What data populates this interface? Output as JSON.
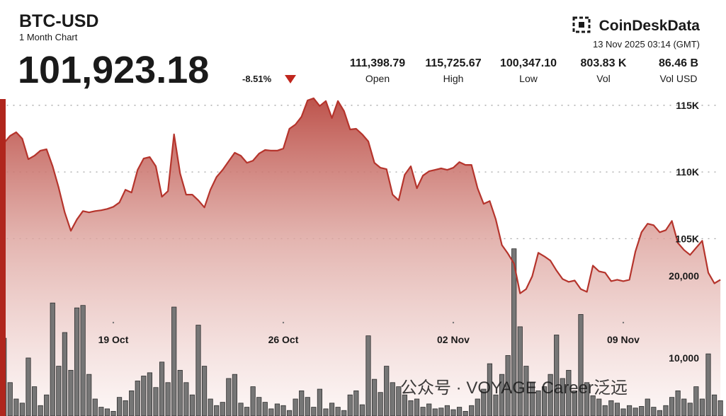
{
  "chart_data": {
    "type": "line",
    "title": "BTC-USD",
    "subtitle": "1 Month Chart",
    "price": "101,923.18",
    "change": "-8.51%",
    "brand": "CoinDeskData",
    "timestamp": "13 Nov 2025 03:14 (GMT)",
    "watermark": "公众号 · VOYAGE Career泛远",
    "stats": [
      {
        "value": "111,398.79",
        "label": "Open"
      },
      {
        "value": "115,725.67",
        "label": "High"
      },
      {
        "value": "100,347.10",
        "label": "Low"
      },
      {
        "value": "803.83 K",
        "label": "Vol"
      },
      {
        "value": "86.46 B",
        "label": "Vol USD"
      }
    ],
    "categories": [
      null,
      null,
      null,
      null,
      null,
      null,
      null,
      null,
      null,
      null,
      null,
      null,
      null,
      null,
      null,
      null,
      null,
      null,
      "19 Oct",
      null,
      null,
      null,
      null,
      null,
      null,
      null,
      null,
      null,
      null,
      null,
      null,
      null,
      null,
      null,
      null,
      null,
      null,
      null,
      null,
      null,
      null,
      null,
      null,
      null,
      null,
      null,
      "26 Oct",
      null,
      null,
      null,
      null,
      null,
      null,
      null,
      null,
      null,
      null,
      null,
      null,
      null,
      null,
      null,
      null,
      null,
      null,
      null,
      null,
      null,
      null,
      null,
      null,
      null,
      null,
      null,
      "02 Nov",
      null,
      null,
      null,
      null,
      null,
      null,
      null,
      null,
      null,
      null,
      null,
      null,
      null,
      null,
      null,
      null,
      null,
      null,
      null,
      null,
      null,
      null,
      null,
      null,
      null,
      null,
      null,
      "09 Nov",
      null,
      null,
      null,
      null,
      null,
      null,
      null,
      null,
      null,
      null,
      null,
      null,
      null,
      null,
      null,
      null
    ],
    "series": [
      {
        "color": "#b5342c",
        "values": [
          112180,
          112710,
          112980,
          112500,
          110960,
          111220,
          111600,
          111700,
          110430,
          108830,
          106970,
          105590,
          106440,
          107070,
          106970,
          107070,
          107130,
          107230,
          107390,
          107710,
          108670,
          108460,
          110160,
          111010,
          111120,
          110430,
          108140,
          108560,
          112820,
          109890,
          108300,
          108300,
          107870,
          107340,
          108670,
          109620,
          110160,
          110800,
          111440,
          111220,
          110690,
          110850,
          111380,
          111650,
          111600,
          111600,
          111760,
          113240,
          113560,
          114150,
          115370,
          115530,
          114950,
          115320,
          114040,
          115320,
          114570,
          113190,
          113240,
          112820,
          112290,
          110690,
          110320,
          110210,
          108300,
          107870,
          109790,
          110430,
          108780,
          109730,
          110050,
          110160,
          110270,
          110160,
          110320,
          110740,
          110530,
          110530,
          108780,
          107610,
          107820,
          106440,
          104520,
          103880,
          103140,
          100900,
          101220,
          102180,
          103940,
          103670,
          103350,
          102610,
          101970,
          101760,
          101860,
          101220,
          101010,
          102980,
          102550,
          102450,
          101810,
          101920,
          101810,
          101920,
          104040,
          105480,
          106120,
          106010,
          105480,
          105640,
          106330,
          104680,
          104150,
          103780,
          104310,
          104840,
          102450,
          101650,
          101920
        ]
      },
      {
        "axis": "y2",
        "type": "bar",
        "color": "#767676",
        "values": [
          12400,
          7000,
          5000,
          4500,
          10000,
          6500,
          4200,
          5500,
          16700,
          9000,
          13100,
          8500,
          16100,
          16400,
          8000,
          5000,
          4000,
          3800,
          3500,
          5200,
          4800,
          6000,
          7200,
          7800,
          8200,
          6400,
          9500,
          7000,
          16200,
          8500,
          7000,
          5500,
          14000,
          9000,
          5000,
          4200,
          4600,
          7500,
          8000,
          4500,
          4000,
          6500,
          5200,
          4600,
          3800,
          4400,
          4200,
          3600,
          5000,
          6000,
          5200,
          4000,
          6200,
          3800,
          4500,
          4000,
          3600,
          5500,
          6000,
          4300,
          12700,
          7400,
          5800,
          9000,
          7000,
          6500,
          5500,
          4800,
          5000,
          4000,
          4400,
          3800,
          3900,
          4200,
          3700,
          4000,
          3500,
          4200,
          5000,
          6200,
          9300,
          5500,
          8000,
          10300,
          23300,
          13800,
          9000,
          7000,
          6000,
          6500,
          8000,
          12800,
          7500,
          8500,
          6000,
          15300,
          7000,
          5400,
          5000,
          4200,
          4800,
          4500,
          3800,
          4200,
          3900,
          4100,
          5000,
          4000,
          3600,
          4200,
          5200,
          6000,
          5000,
          4500,
          6500,
          5000,
          10500,
          5500,
          4800
        ]
      }
    ],
    "ylim": [
      91700,
      116000
    ],
    "yticks": [
      {
        "value": 115000,
        "label": "115K"
      },
      {
        "value": 110000,
        "label": "110K"
      },
      {
        "value": 105000,
        "label": "105K"
      }
    ],
    "y2lim": [
      2930,
      42400
    ],
    "y2ticks": [
      {
        "value": 20000,
        "label": "20,000"
      },
      {
        "value": 10000,
        "label": "10,000"
      }
    ],
    "grid": true
  }
}
